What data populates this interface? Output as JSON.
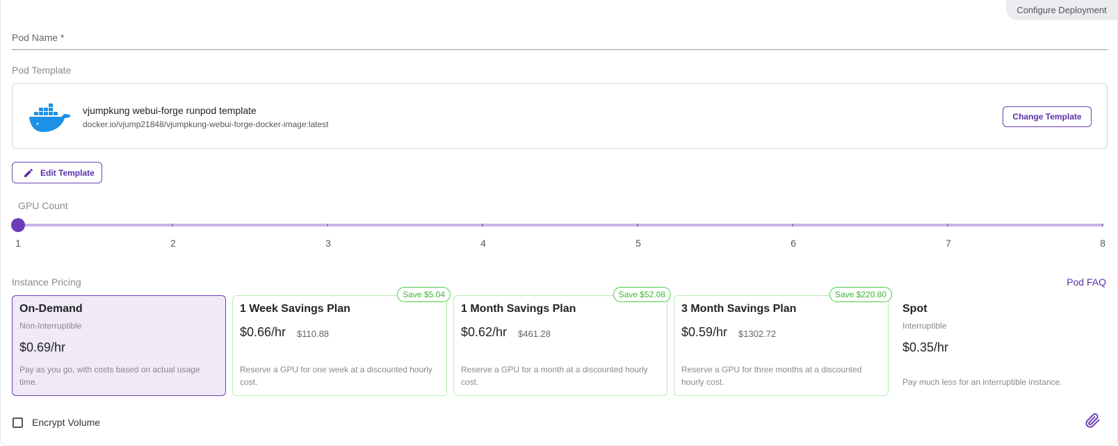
{
  "header": {
    "configure_tab": "Configure Deployment"
  },
  "pod_name": {
    "label": "Pod Name *",
    "value": ""
  },
  "pod_template": {
    "section_label": "Pod Template",
    "name": "vjumpkung webui-forge runpod template",
    "image": "docker.io/vjump21848/vjumpkung-webui-forge-docker-image:latest",
    "logo_icon": "docker-whale-icon",
    "change_label": "Change Template"
  },
  "edit_template": {
    "label": "Edit Template",
    "icon": "pencil-icon"
  },
  "gpu_count": {
    "label": "GPU Count",
    "marks": [
      "1",
      "2",
      "3",
      "4",
      "5",
      "6",
      "7",
      "8"
    ],
    "selected": 1,
    "min": 1,
    "max": 8
  },
  "pricing": {
    "section_label": "Instance Pricing",
    "faq_label": "Pod FAQ",
    "plans": [
      {
        "title": "On-Demand",
        "subtitle": "Non-Interruptible",
        "price": "$0.69/hr",
        "description": "Pay as you go, with costs based on actual usage time.",
        "selected": true
      },
      {
        "title": "1 Week Savings Plan",
        "price": "$0.66/hr",
        "total": "$110.88",
        "badge": "Save $5.04",
        "description": "Reserve a GPU for one week at a discounted hourly cost."
      },
      {
        "title": "1 Month Savings Plan",
        "price": "$0.62/hr",
        "total": "$461.28",
        "badge": "Save $52.08",
        "description": "Reserve a GPU for a month at a discounted hourly cost."
      },
      {
        "title": "3 Month Savings Plan",
        "price": "$0.59/hr",
        "total": "$1302.72",
        "badge": "Save $220.80",
        "description": "Reserve a GPU for three months at a discounted hourly cost."
      },
      {
        "title": "Spot",
        "subtitle": "Interruptible",
        "price": "$0.35/hr",
        "description": "Pay much less for an interruptible instance."
      }
    ]
  },
  "encrypt_volume": {
    "label": "Encrypt Volume",
    "checked": false
  },
  "attach": {
    "icon": "paperclip-icon"
  },
  "colors": {
    "accent": "#6a3db8",
    "savings_green": "#3fb536",
    "selected_bg": "#efe9f8"
  }
}
